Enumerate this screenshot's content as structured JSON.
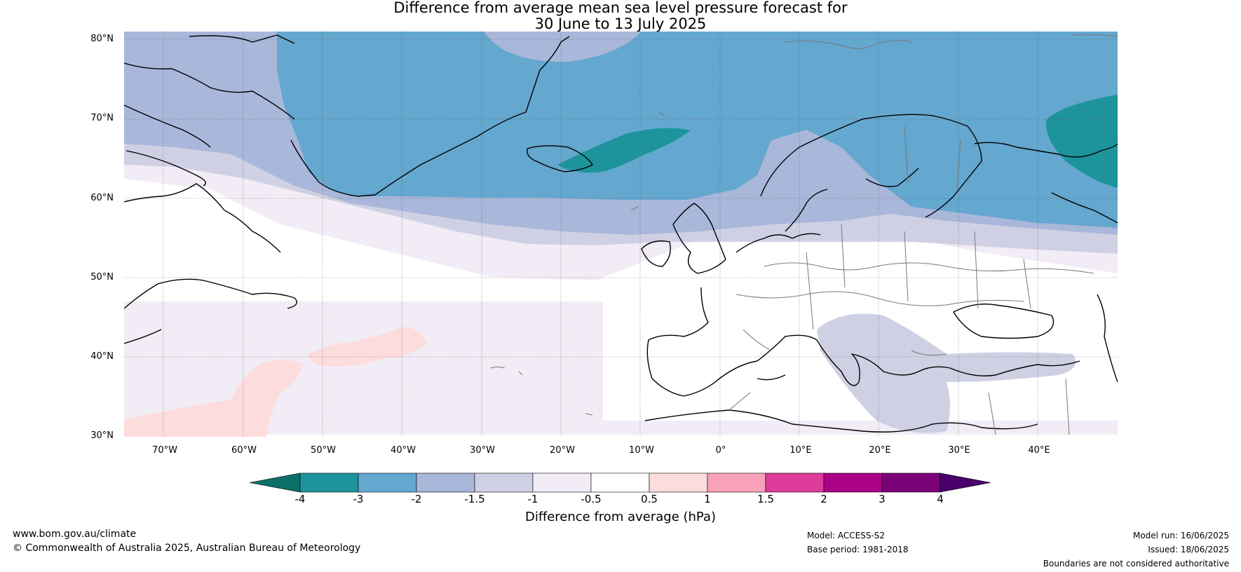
{
  "title": {
    "line1": "Difference from average mean sea level pressure forecast for",
    "line2": "30 June to 13 July 2025"
  },
  "map": {
    "lat_labels": [
      "80°N",
      "70°N",
      "60°N",
      "50°N",
      "40°N",
      "30°N"
    ],
    "lon_labels": [
      "70°W",
      "60°W",
      "50°W",
      "40°W",
      "30°W",
      "20°W",
      "10°W",
      "0°",
      "10°E",
      "20°E",
      "30°E",
      "40°E"
    ],
    "extent": {
      "lon": [
        -75,
        50
      ],
      "lat": [
        30,
        81
      ]
    },
    "anomaly_colors": {
      "below_-4": "#0b6e67",
      "-4_to_-3": "#1d949b",
      "-3_to_-2": "#64a7cf",
      "-2_to_-1.5": "#a8b7da",
      "-1.5_to_-1": "#d0d0e4",
      "-1_to_-0.5": "#f1ecf5",
      "-0.5_to_0.5": "#ffffff",
      "0.5_to_1": "#fddcdc",
      "1_to_1.5": "#f9a1b9",
      "1.5_to_2": "#df3b9a",
      "2_to_3": "#ab0386",
      "3_to_4": "#7a0177",
      "above_4": "#49006a"
    }
  },
  "colorbar": {
    "ticks": [
      "-4",
      "-3",
      "-2",
      "-1.5",
      "-1",
      "-0.5",
      "0.5",
      "1",
      "1.5",
      "2",
      "3",
      "4"
    ],
    "colors": [
      "#1d949b",
      "#64a7cf",
      "#a8b7da",
      "#d0d0e4",
      "#f1ecf5",
      "#ffffff",
      "#fddcdc",
      "#f9a1b9",
      "#df3b9a",
      "#ab0386",
      "#7a0177"
    ],
    "extend_low_color": "#0b6e67",
    "extend_high_color": "#49006a",
    "label": "Difference from average (hPa)"
  },
  "footer": {
    "website": "www.bom.gov.au/climate",
    "copyright": "© Commonwealth of Australia 2025, Australian Bureau of Meteorology",
    "model": "Model: ACCESS-S2",
    "base_period": "Base period: 1981-2018",
    "model_run": "Model run: 16/06/2025",
    "issued": "Issued: 18/06/2025",
    "disclaimer": "Boundaries are not considered authoritative"
  }
}
